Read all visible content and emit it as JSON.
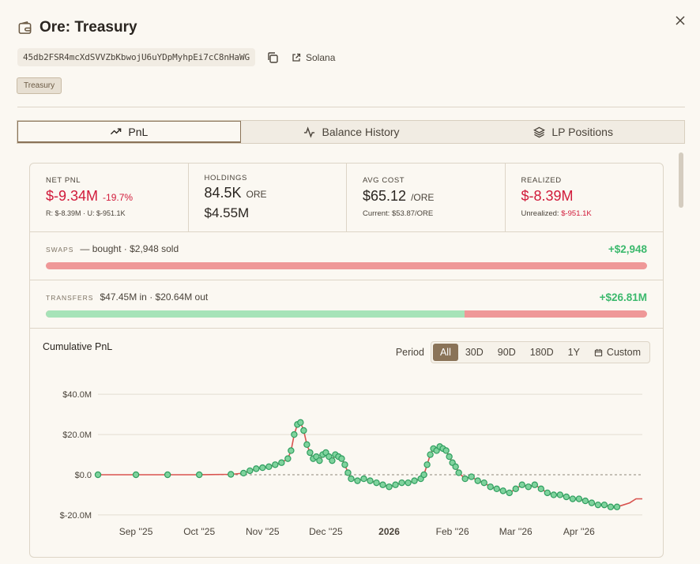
{
  "header": {
    "title": "Ore: Treasury",
    "icon": "wallet-icon"
  },
  "address": {
    "value": "45db2FSR4mcXdSVVZbKbwojU6uYDpMyhpEi7cC8nHaWG",
    "chain_label": "Solana"
  },
  "badge": "Treasury",
  "tabs": [
    {
      "label": "PnL",
      "icon": "trend-icon",
      "active": true
    },
    {
      "label": "Balance History",
      "icon": "activity-icon",
      "active": false
    },
    {
      "label": "LP Positions",
      "icon": "layers-icon",
      "active": false
    }
  ],
  "stats": {
    "net_pnl": {
      "label": "NET PNL",
      "value": "$-9.34M",
      "pct": "-19.7%",
      "sub": "R: $-8.39M · U: $-951.1K"
    },
    "holdings": {
      "label": "HOLDINGS",
      "amount": "84.5K",
      "unit": "ORE",
      "value": "$4.55M"
    },
    "avg_cost": {
      "label": "AVG COST",
      "value": "$65.12",
      "unit": "/ORE",
      "sub": "Current: $53.87/ORE"
    },
    "realized": {
      "label": "REALIZED",
      "value": "$-8.39M",
      "sub_label": "Unrealized:",
      "sub_value": "$-951.1K"
    }
  },
  "swaps": {
    "label": "SWAPS",
    "text": "— bought · $2,948 sold",
    "amount": "+$2,948",
    "green_fraction": 0.0
  },
  "transfers": {
    "label": "TRANSFERS",
    "text": "$47.45M in · $20.64M out",
    "amount": "+$26.81M",
    "green_fraction": 0.697
  },
  "chart": {
    "title": "Cumulative PnL",
    "period_label": "Period",
    "periods": [
      "All",
      "30D",
      "90D",
      "180D",
      "1Y"
    ],
    "active_period": "All",
    "custom_label": "Custom"
  },
  "chart_data": {
    "type": "line",
    "title": "Cumulative PnL",
    "y_ticks": [
      {
        "value": 40,
        "label": "$40.0M"
      },
      {
        "value": 20,
        "label": "$20.0M"
      },
      {
        "value": 0,
        "label": "$0.0"
      },
      {
        "value": -20,
        "label": "$-20.0M"
      }
    ],
    "x_ticks": [
      {
        "x": 1.0,
        "label": "Sep ''25"
      },
      {
        "x": 2.0,
        "label": "Oct ''25"
      },
      {
        "x": 3.0,
        "label": "Nov ''25"
      },
      {
        "x": 4.0,
        "label": "Dec ''25"
      },
      {
        "x": 5.0,
        "label": "2026",
        "bold": true
      },
      {
        "x": 6.0,
        "label": "Feb ''26"
      },
      {
        "x": 7.0,
        "label": "Mar ''26"
      },
      {
        "x": 8.0,
        "label": "Apr ''26"
      }
    ],
    "ylim": [
      -22,
      44
    ],
    "xlim": [
      0.4,
      9.0
    ],
    "zero_line": "dashed",
    "line_color": "#d9534f",
    "marker_color": "#3cb96d",
    "series": [
      {
        "points": [
          [
            0.4,
            0
          ],
          [
            1.0,
            0
          ],
          [
            1.5,
            0
          ],
          [
            2.0,
            0
          ],
          [
            2.5,
            0.2
          ],
          [
            2.7,
            0.8
          ],
          [
            2.8,
            2
          ],
          [
            2.9,
            3
          ],
          [
            3.0,
            3.5
          ],
          [
            3.1,
            4
          ],
          [
            3.2,
            5
          ],
          [
            3.3,
            6
          ],
          [
            3.4,
            8
          ],
          [
            3.45,
            12
          ],
          [
            3.5,
            20
          ],
          [
            3.55,
            25
          ],
          [
            3.6,
            26
          ],
          [
            3.65,
            22
          ],
          [
            3.7,
            15
          ],
          [
            3.75,
            11
          ],
          [
            3.8,
            8
          ],
          [
            3.85,
            9
          ],
          [
            3.9,
            7
          ],
          [
            3.95,
            10
          ],
          [
            4.0,
            11
          ],
          [
            4.05,
            9
          ],
          [
            4.1,
            7
          ],
          [
            4.15,
            10
          ],
          [
            4.2,
            9
          ],
          [
            4.25,
            8
          ],
          [
            4.3,
            5
          ],
          [
            4.35,
            1
          ],
          [
            4.4,
            -2
          ],
          [
            4.5,
            -3
          ],
          [
            4.6,
            -2
          ],
          [
            4.7,
            -3
          ],
          [
            4.8,
            -4
          ],
          [
            4.9,
            -5
          ],
          [
            5.0,
            -6
          ],
          [
            5.1,
            -5
          ],
          [
            5.2,
            -4
          ],
          [
            5.3,
            -4
          ],
          [
            5.4,
            -3
          ],
          [
            5.5,
            -2
          ],
          [
            5.55,
            0
          ],
          [
            5.6,
            5
          ],
          [
            5.65,
            10
          ],
          [
            5.7,
            13
          ],
          [
            5.75,
            12
          ],
          [
            5.8,
            14
          ],
          [
            5.85,
            13
          ],
          [
            5.9,
            12
          ],
          [
            5.95,
            9
          ],
          [
            6.0,
            6
          ],
          [
            6.05,
            4
          ],
          [
            6.1,
            1
          ],
          [
            6.2,
            -2
          ],
          [
            6.3,
            -1
          ],
          [
            6.4,
            -3
          ],
          [
            6.5,
            -4
          ],
          [
            6.6,
            -6
          ],
          [
            6.7,
            -7
          ],
          [
            6.8,
            -8
          ],
          [
            6.9,
            -9
          ],
          [
            7.0,
            -7
          ],
          [
            7.1,
            -5
          ],
          [
            7.2,
            -6
          ],
          [
            7.3,
            -5
          ],
          [
            7.4,
            -7
          ],
          [
            7.5,
            -9
          ],
          [
            7.6,
            -10
          ],
          [
            7.7,
            -10
          ],
          [
            7.8,
            -11
          ],
          [
            7.9,
            -12
          ],
          [
            8.0,
            -12
          ],
          [
            8.1,
            -13
          ],
          [
            8.2,
            -14
          ],
          [
            8.3,
            -15
          ],
          [
            8.4,
            -15
          ],
          [
            8.5,
            -16
          ],
          [
            8.6,
            -16
          ],
          [
            8.7,
            -15
          ],
          [
            8.8,
            -14
          ],
          [
            8.9,
            -12
          ],
          [
            9.0,
            -12
          ]
        ]
      }
    ]
  }
}
